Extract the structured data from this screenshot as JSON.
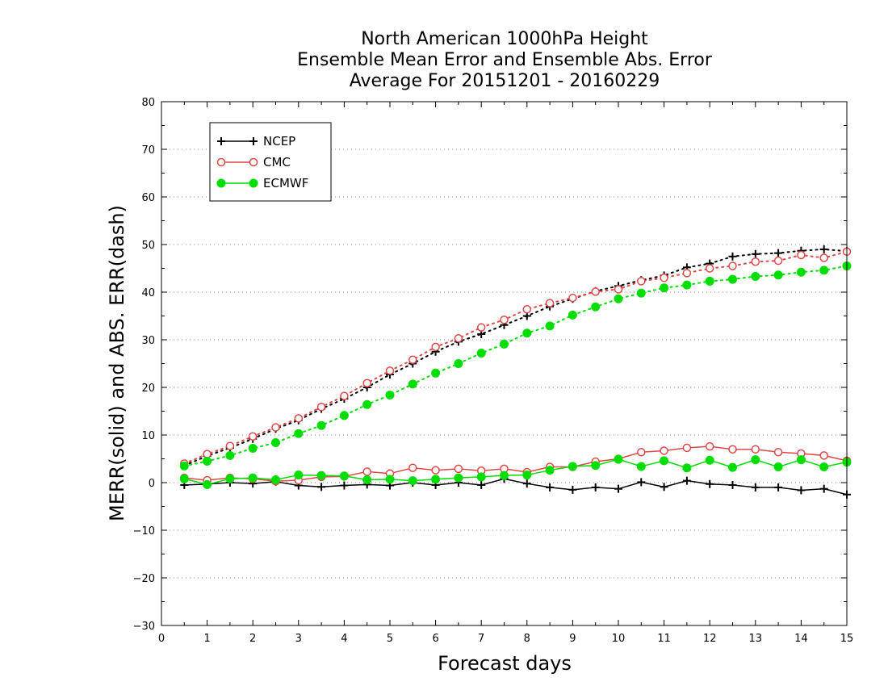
{
  "chart_data": {
    "type": "line",
    "title": [
      "North American 1000hPa Height",
      "Ensemble Mean Error and Ensemble Abs. Error",
      "Average For 20151201 - 20160229"
    ],
    "xlabel": "Forecast days",
    "ylabel": "MERR(solid) and ABS. ERR(dash)",
    "xlim": [
      0,
      15
    ],
    "ylim": [
      -30,
      80
    ],
    "xticks": [
      0,
      1,
      2,
      3,
      4,
      5,
      6,
      7,
      8,
      9,
      10,
      11,
      12,
      13,
      14,
      15
    ],
    "yticks": [
      -30,
      -20,
      -10,
      0,
      10,
      20,
      30,
      40,
      50,
      60,
      70,
      80
    ],
    "grid": "horizontal dotted",
    "legend_position": "top-left",
    "x": [
      0.5,
      1,
      1.5,
      2,
      2.5,
      3,
      3.5,
      4,
      4.5,
      5,
      5.5,
      6,
      6.5,
      7,
      7.5,
      8,
      8.5,
      9,
      9.5,
      10,
      10.5,
      11,
      11.5,
      12,
      12.5,
      13,
      13.5,
      14,
      14.5,
      15
    ],
    "series": [
      {
        "name": "NCEP",
        "color": "#000000",
        "marker": "plus",
        "merr": [
          -0.5,
          -0.3,
          0.0,
          -0.2,
          0.2,
          -0.6,
          -0.9,
          -0.6,
          -0.4,
          -0.6,
          0.0,
          -0.5,
          0.0,
          -0.5,
          0.8,
          -0.2,
          -1.0,
          -1.5,
          -1.0,
          -1.3,
          0.1,
          -0.9,
          0.4,
          -0.3,
          -0.5,
          -1.0,
          -1.0,
          -1.6,
          -1.3,
          -2.5
        ],
        "abs_err": [
          3.6,
          5.6,
          7.3,
          9.2,
          11.3,
          13.1,
          15.5,
          17.6,
          20.0,
          22.7,
          25.0,
          27.5,
          29.6,
          31.2,
          33.1,
          35.0,
          37.0,
          38.6,
          40.2,
          41.3,
          42.5,
          43.5,
          45.2,
          46.0,
          47.5,
          48.0,
          48.2,
          48.7,
          49.0,
          48.6
        ]
      },
      {
        "name": "CMC",
        "color": "#e04848",
        "marker": "open-circle",
        "merr": [
          1.0,
          0.5,
          1.0,
          0.8,
          0.3,
          0.5,
          1.2,
          1.3,
          2.3,
          1.9,
          3.1,
          2.6,
          2.9,
          2.5,
          2.9,
          2.2,
          3.3,
          3.3,
          4.4,
          5.0,
          6.4,
          6.7,
          7.3,
          7.6,
          7.0,
          7.0,
          6.4,
          6.1,
          5.7,
          4.6
        ],
        "abs_err": [
          4.0,
          6.0,
          7.7,
          9.7,
          11.6,
          13.5,
          15.9,
          18.2,
          20.9,
          23.5,
          25.8,
          28.5,
          30.3,
          32.6,
          34.2,
          36.4,
          37.7,
          38.8,
          40.1,
          40.6,
          42.3,
          43.0,
          44.0,
          45.0,
          45.5,
          46.4,
          46.6,
          47.8,
          47.2,
          48.5
        ]
      },
      {
        "name": "ECMWF",
        "color": "#00dd00",
        "marker": "filled-circle",
        "merr": [
          0.8,
          -0.4,
          0.8,
          1.0,
          0.6,
          1.6,
          1.5,
          1.4,
          0.6,
          0.7,
          0.4,
          0.7,
          1.0,
          1.2,
          1.5,
          1.6,
          2.6,
          3.4,
          3.6,
          4.9,
          3.4,
          4.6,
          3.1,
          4.7,
          3.2,
          4.8,
          3.3,
          4.8,
          3.3,
          4.3
        ],
        "abs_err": [
          3.5,
          4.5,
          5.7,
          7.2,
          8.4,
          10.3,
          12.0,
          14.1,
          16.4,
          18.4,
          20.7,
          23.0,
          25.0,
          27.2,
          29.1,
          31.4,
          32.9,
          35.2,
          36.9,
          38.6,
          39.8,
          40.9,
          41.5,
          42.3,
          42.7,
          43.3,
          43.6,
          44.2,
          44.6,
          45.5
        ]
      }
    ]
  }
}
